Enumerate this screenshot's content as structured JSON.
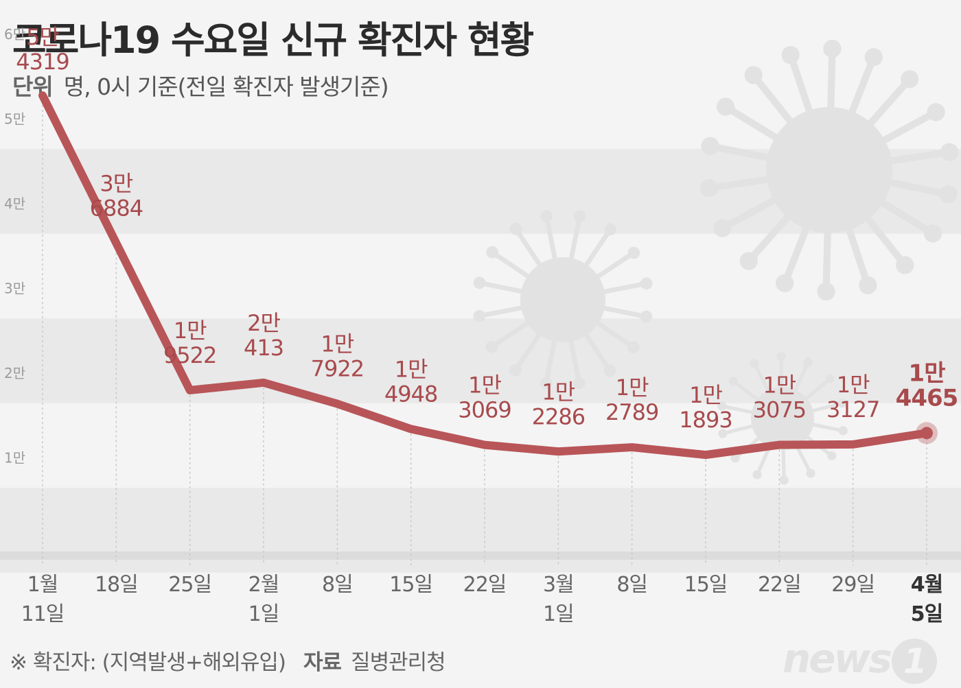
{
  "header": {
    "title": "코로나19 수요일 신규 확진자 현황",
    "unit_label": "단위",
    "unit_text": "명, 0시 기준(전일 확진자 발생기준)"
  },
  "footer": {
    "note": "※ 확진자: (지역발생+해외유입)",
    "source_label": "자료",
    "source": "질병관리청",
    "logo": "news",
    "logo_mark": "1"
  },
  "colors": {
    "line": "#b85558",
    "label": "#a84a4d",
    "band": "#e9e9e9",
    "grid_text": "#9a9a9a",
    "virus": "#e2e2e2"
  },
  "chart_data": {
    "type": "line",
    "title": "코로나19 수요일 신규 확진자 현황",
    "ylim": [
      0,
      60000
    ],
    "yticks": [
      10000,
      20000,
      30000,
      40000,
      50000,
      60000
    ],
    "ytick_labels": [
      "1만",
      "2만",
      "3만",
      "4만",
      "5만",
      "6만"
    ],
    "categories": [
      "1월 11일",
      "18일",
      "25일",
      "2월 1일",
      "8일",
      "15일",
      "22일",
      "3월 1일",
      "8일",
      "15일",
      "22일",
      "29일",
      "4월 5일"
    ],
    "xtick_line1": [
      "1월",
      "18일",
      "25일",
      "2월",
      "8일",
      "15일",
      "22일",
      "3월",
      "8일",
      "15일",
      "22일",
      "29일",
      "4월"
    ],
    "xtick_line2": [
      "11일",
      "",
      "",
      "1일",
      "",
      "",
      "",
      "1일",
      "",
      "",
      "",
      "",
      "5일"
    ],
    "values": [
      54319,
      36884,
      19522,
      20413,
      17922,
      14948,
      13069,
      12286,
      12789,
      11893,
      13075,
      13127,
      14465
    ],
    "label_line1": [
      "5만",
      "3만",
      "1만",
      "2만",
      "1만",
      "1만",
      "1만",
      "1만",
      "1만",
      "1만",
      "1만",
      "1만",
      "1만"
    ],
    "label_line2": [
      "4319",
      "6884",
      "9522",
      "413",
      "7922",
      "4948",
      "3069",
      "2286",
      "2789",
      "1893",
      "3075",
      "3127",
      "4465"
    ],
    "highlight_index": 12,
    "grid": true
  }
}
